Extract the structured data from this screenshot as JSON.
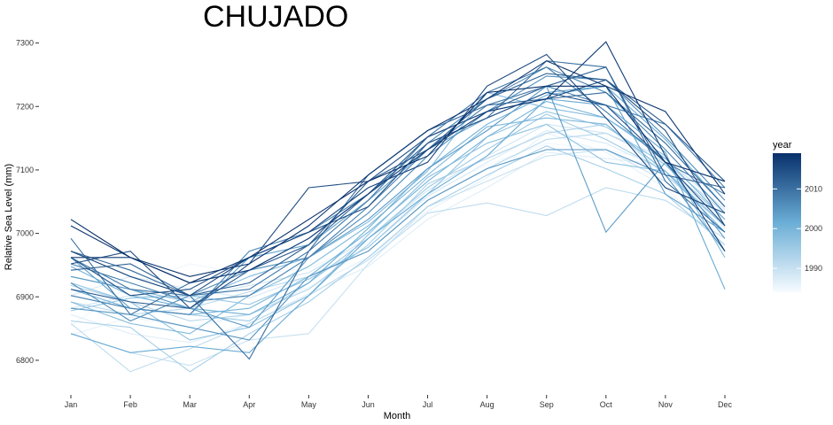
{
  "chart_data": {
    "type": "line",
    "title": "CHUJADO",
    "xlabel": "Month",
    "ylabel": "Relative Sea Level (mm)",
    "categories": [
      "Jan",
      "Feb",
      "Mar",
      "Apr",
      "May",
      "Jun",
      "Jul",
      "Aug",
      "Sep",
      "Oct",
      "Nov",
      "Dec"
    ],
    "ylim": [
      6765,
      7312
    ],
    "yticks": [
      6800,
      6900,
      7000,
      7100,
      7200,
      7300
    ],
    "grid": false,
    "legend": {
      "title": "year",
      "placement": "right",
      "range": [
        1984,
        2019
      ],
      "ticks": [
        1990,
        2000,
        2010
      ],
      "color_low": "#f7fbff",
      "color_high": "#08306b"
    },
    "series": [
      {
        "year": 1985,
        "values": [
          6855,
          6918,
          6952,
          6935,
          6945,
          6985,
          7062,
          7108,
          7142,
          7132,
          7112,
          7045
        ]
      },
      {
        "year": 1986,
        "values": [
          6840,
          6868,
          6852,
          6872,
          6915,
          6962,
          7035,
          7088,
          7158,
          7128,
          7072,
          6982
        ]
      },
      {
        "year": 1987,
        "values": [
          6872,
          6842,
          6828,
          6858,
          6905,
          6948,
          7022,
          7072,
          7128,
          7118,
          7108,
          7008
        ]
      },
      {
        "year": 1988,
        "values": [
          6902,
          6932,
          6912,
          6898,
          6932,
          6978,
          7058,
          7112,
          7162,
          7142,
          7098,
          7022
        ]
      },
      {
        "year": 1989,
        "values": [
          6882,
          6902,
          6898,
          6918,
          6938,
          6992,
          7068,
          7122,
          7172,
          7158,
          7118,
          7038
        ]
      },
      {
        "year": 1990,
        "values": [
          6842,
          6812,
          6792,
          6832,
          6842,
          6952,
          7042,
          7082,
          7122,
          7132,
          7082,
          7002
        ]
      },
      {
        "year": 1991,
        "values": [
          6858,
          6782,
          6818,
          6858,
          6902,
          6958,
          7032,
          7048,
          7028,
          7072,
          7052,
          6992
        ]
      },
      {
        "year": 1992,
        "values": [
          6892,
          6872,
          6882,
          6908,
          6932,
          6972,
          7052,
          7102,
          7148,
          7158,
          7112,
          7032
        ]
      },
      {
        "year": 1993,
        "values": [
          6918,
          6892,
          6862,
          6872,
          6912,
          6982,
          7078,
          7118,
          7158,
          7172,
          7092,
          7012
        ]
      },
      {
        "year": 1994,
        "values": [
          6862,
          6852,
          6782,
          6842,
          6892,
          6962,
          7042,
          7092,
          7138,
          7102,
          7062,
          6982
        ]
      },
      {
        "year": 1995,
        "values": [
          6902,
          6882,
          6872,
          6862,
          6922,
          6992,
          7072,
          7132,
          7188,
          7148,
          7098,
          7002
        ]
      },
      {
        "year": 1996,
        "values": [
          6878,
          6898,
          6902,
          6888,
          6928,
          6978,
          7062,
          7152,
          7192,
          7168,
          7108,
          7022
        ]
      },
      {
        "year": 1997,
        "values": [
          6922,
          6892,
          6832,
          6852,
          6902,
          6998,
          7088,
          7142,
          7172,
          7112,
          7098,
          7012
        ]
      },
      {
        "year": 1998,
        "values": [
          6932,
          6912,
          6892,
          6932,
          6962,
          7018,
          7098,
          7222,
          7198,
          7182,
          7122,
          6962
        ]
      },
      {
        "year": 1999,
        "values": [
          6892,
          6858,
          6842,
          6902,
          6948,
          7012,
          7092,
          7168,
          7182,
          7172,
          7098,
          7002
        ]
      },
      {
        "year": 2000,
        "values": [
          6912,
          6882,
          6872,
          6882,
          6932,
          7002,
          7082,
          7152,
          7208,
          7182,
          7118,
          7022
        ]
      },
      {
        "year": 2001,
        "values": [
          6948,
          6902,
          6882,
          6872,
          6922,
          7008,
          7102,
          7172,
          7218,
          7232,
          7148,
          7042
        ]
      },
      {
        "year": 2002,
        "values": [
          6842,
          6812,
          6822,
          6812,
          6902,
          6992,
          7062,
          7122,
          7212,
          7202,
          7128,
          6912
        ]
      },
      {
        "year": 2003,
        "values": [
          6962,
          6882,
          6872,
          6962,
          6982,
          7052,
          7132,
          7182,
          7222,
          7232,
          7062,
          7002
        ]
      },
      {
        "year": 2004,
        "values": [
          6932,
          6912,
          6882,
          6852,
          6962,
          7022,
          7102,
          7162,
          7232,
          7002,
          7112,
          6992
        ]
      },
      {
        "year": 2005,
        "values": [
          6882,
          6872,
          6852,
          6832,
          6932,
          6972,
          7052,
          7102,
          7132,
          7132,
          7092,
          6972
        ]
      },
      {
        "year": 2006,
        "values": [
          6922,
          6862,
          6902,
          6942,
          6962,
          7032,
          7122,
          7192,
          7248,
          7242,
          7152,
          7052
        ]
      },
      {
        "year": 2007,
        "values": [
          6902,
          6882,
          6872,
          6972,
          7002,
          7062,
          7142,
          7212,
          7262,
          7222,
          7132,
          7032
        ]
      },
      {
        "year": 2008,
        "values": [
          6952,
          6922,
          6892,
          6902,
          6962,
          7042,
          7132,
          7202,
          7232,
          7202,
          7172,
          7072
        ]
      },
      {
        "year": 2009,
        "values": [
          6962,
          6912,
          6902,
          6912,
          6972,
          7052,
          7152,
          7222,
          7262,
          7192,
          7112,
          7062
        ]
      },
      {
        "year": 2010,
        "values": [
          6992,
          6872,
          6922,
          6942,
          6992,
          7062,
          7142,
          7182,
          7272,
          7262,
          7082,
          7002
        ]
      },
      {
        "year": 2011,
        "values": [
          6972,
          6942,
          6902,
          6802,
          6972,
          7092,
          7162,
          7202,
          7212,
          7222,
          7142,
          7042
        ]
      },
      {
        "year": 2012,
        "values": [
          6942,
          6952,
          6902,
          6922,
          6982,
          7062,
          7152,
          7192,
          7232,
          7262,
          7092,
          7072
        ]
      },
      {
        "year": 2013,
        "values": [
          6912,
          6892,
          6882,
          6942,
          6982,
          7082,
          7132,
          7212,
          7252,
          7242,
          7172,
          7082
        ]
      },
      {
        "year": 2014,
        "values": [
          6962,
          6902,
          6912,
          6962,
          7002,
          7042,
          7142,
          7182,
          7222,
          7202,
          7112,
          7012
        ]
      },
      {
        "year": 2015,
        "values": [
          6952,
          6972,
          6882,
          6952,
          7072,
          7082,
          7152,
          7192,
          7212,
          7242,
          7162,
          7012
        ]
      },
      {
        "year": 2016,
        "values": [
          6972,
          6932,
          6902,
          6962,
          7002,
          7072,
          7112,
          7232,
          7282,
          7182,
          7072,
          7032
        ]
      },
      {
        "year": 2017,
        "values": [
          6962,
          6962,
          6922,
          6942,
          6992,
          7062,
          7132,
          7192,
          7212,
          7302,
          7122,
          6972
        ]
      },
      {
        "year": 2018,
        "values": [
          7012,
          6962,
          6932,
          6952,
          7012,
          7092,
          7162,
          7212,
          7272,
          7232,
          7192,
          7062
        ]
      },
      {
        "year": 2019,
        "values": [
          7022,
          6962,
          6922,
          6962,
          7022,
          7082,
          7122,
          7222,
          7232,
          7232,
          7112,
          7082
        ]
      }
    ]
  }
}
